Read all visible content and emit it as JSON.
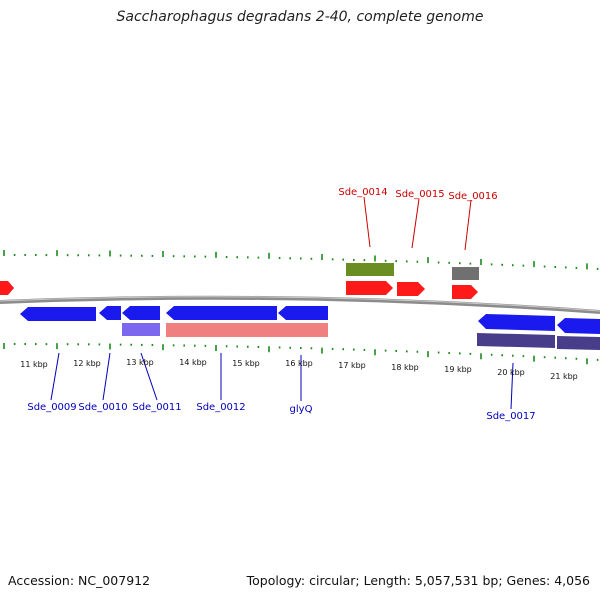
{
  "title": "Saccharophagus degradans 2-40, complete genome",
  "footer": {
    "accession": "Accession: NC_007912",
    "topology": "Topology: circular; Length: 5,057,531 bp; Genes: 4,056"
  },
  "colors": {
    "tick": "#1a8a1a",
    "backbone": "#8c8c8c",
    "forward_gene": "#ff1a1a",
    "reverse_gene": "#1a1aee",
    "forward_label": "#cc0000",
    "reverse_label": "#0000bb",
    "cds_olive": "#6b8e23",
    "cds_grey": "#707070",
    "cds_slateblue": "#7b68ee",
    "cds_pink": "#f08080",
    "cds_darkslate": "#483d8b"
  },
  "ruler": {
    "labels": [
      "11 kbp",
      "12 kbp",
      "13 kbp",
      "14 kbp",
      "15 kbp",
      "16 kbp",
      "17 kbp",
      "18 kbp",
      "19 kbp",
      "20 kbp",
      "21 kbp"
    ]
  },
  "forward_labels": [
    "Sde_0014",
    "Sde_0015",
    "Sde_0016"
  ],
  "reverse_labels": [
    "Sde_0009",
    "Sde_0010",
    "Sde_0011",
    "Sde_0012",
    "glyQ",
    "Sde_0017"
  ]
}
